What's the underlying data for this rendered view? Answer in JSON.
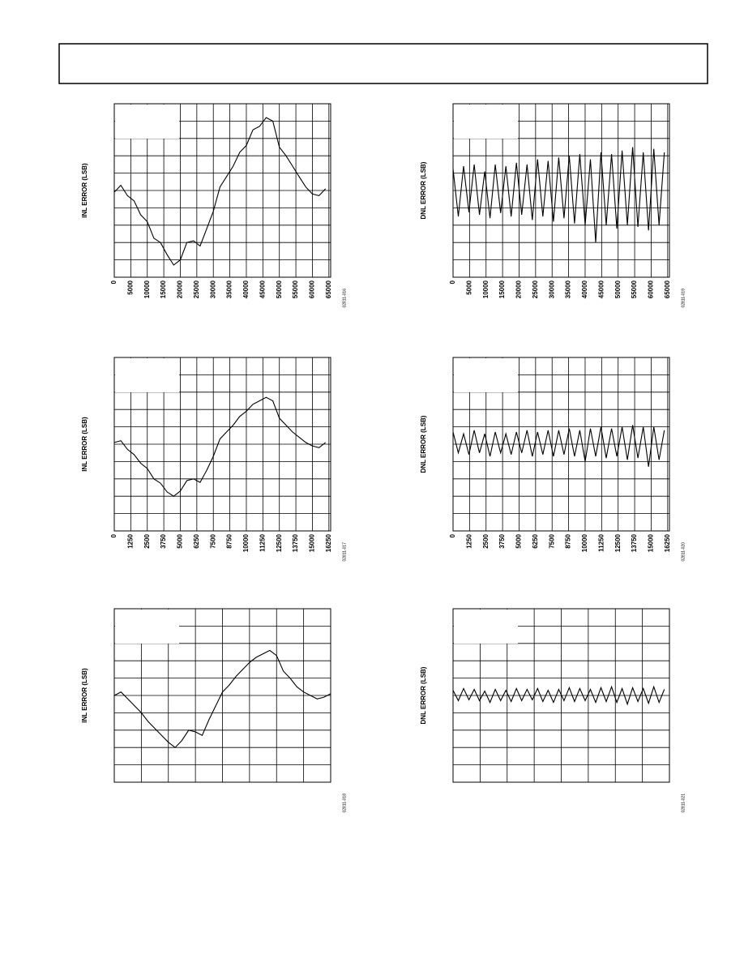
{
  "chart_data": [
    {
      "type": "line",
      "y_label": "INL ERROR (LSB)",
      "figure_id": "02811-016",
      "xlim": [
        0,
        65536
      ],
      "ylim": [
        -1,
        1
      ],
      "xticks": [
        0,
        5000,
        10000,
        15000,
        20000,
        25000,
        30000,
        35000,
        40000,
        45000,
        50000,
        55000,
        60000,
        65000
      ],
      "y_gridlines": [
        -0.8,
        -0.6,
        -0.4,
        -0.2,
        0,
        0.2,
        0.4,
        0.6,
        0.8
      ],
      "color": "#000000",
      "x": [
        0,
        2000,
        4000,
        6000,
        8000,
        10000,
        12000,
        14000,
        16000,
        18000,
        20000,
        22000,
        24000,
        26000,
        28000,
        30000,
        32000,
        34000,
        36000,
        38000,
        40000,
        42000,
        44000,
        46000,
        48000,
        50000,
        52000,
        54000,
        56000,
        58000,
        60000,
        62000,
        64000
      ],
      "values": [
        -0.02,
        0.06,
        -0.06,
        -0.12,
        -0.28,
        -0.36,
        -0.55,
        -0.6,
        -0.74,
        -0.86,
        -0.8,
        -0.6,
        -0.58,
        -0.64,
        -0.44,
        -0.24,
        0.04,
        0.16,
        0.28,
        0.44,
        0.52,
        0.7,
        0.74,
        0.84,
        0.8,
        0.5,
        0.4,
        0.28,
        0.16,
        0.04,
        -0.04,
        -0.06,
        0.02
      ]
    },
    {
      "type": "line",
      "y_label": "DNL ERROR (LSB)",
      "figure_id": "02811-019",
      "xlim": [
        0,
        65536
      ],
      "ylim": [
        -1,
        1
      ],
      "xticks": [
        0,
        5000,
        10000,
        15000,
        20000,
        25000,
        30000,
        35000,
        40000,
        45000,
        50000,
        55000,
        60000,
        65000
      ],
      "y_gridlines": [
        -0.8,
        -0.6,
        -0.4,
        -0.2,
        0,
        0.2,
        0.4,
        0.6,
        0.8
      ],
      "color": "#000000",
      "x": [
        0,
        1600,
        3200,
        4800,
        6400,
        8000,
        9600,
        11200,
        12800,
        14400,
        16000,
        17600,
        19200,
        20800,
        22400,
        24000,
        25600,
        27200,
        28800,
        30400,
        32000,
        33600,
        35200,
        36800,
        38400,
        40000,
        41600,
        43200,
        44800,
        46400,
        48000,
        49600,
        51200,
        52800,
        54400,
        56000,
        57600,
        59200,
        60800,
        62400,
        64000
      ],
      "values": [
        0.25,
        -0.3,
        0.28,
        -0.25,
        0.3,
        -0.28,
        0.22,
        -0.32,
        0.3,
        -0.26,
        0.28,
        -0.3,
        0.32,
        -0.28,
        0.3,
        -0.34,
        0.36,
        -0.3,
        0.34,
        -0.36,
        0.38,
        -0.32,
        0.4,
        -0.38,
        0.42,
        -0.4,
        0.36,
        -0.6,
        0.44,
        -0.4,
        0.42,
        -0.44,
        0.46,
        -0.4,
        0.5,
        -0.42,
        0.44,
        -0.46,
        0.48,
        -0.4,
        0.44
      ]
    },
    {
      "type": "line",
      "y_label": "INL ERROR (LSB)",
      "figure_id": "02811-017",
      "xlim": [
        0,
        16384
      ],
      "ylim": [
        -1,
        1
      ],
      "xticks": [
        0,
        1250,
        2500,
        3750,
        5000,
        6250,
        7500,
        8750,
        10000,
        11250,
        12500,
        13750,
        15000,
        16250
      ],
      "y_gridlines": [
        -0.8,
        -0.6,
        -0.4,
        -0.2,
        0,
        0.2,
        0.4,
        0.6,
        0.8
      ],
      "color": "#000000",
      "x": [
        0,
        500,
        1000,
        1500,
        2000,
        2500,
        3000,
        3500,
        4000,
        4500,
        5000,
        5500,
        6000,
        6500,
        7000,
        7500,
        8000,
        8500,
        9000,
        9500,
        10000,
        10500,
        11000,
        11500,
        12000,
        12500,
        13000,
        13500,
        14000,
        14500,
        15000,
        15500,
        16000
      ],
      "values": [
        0.02,
        0.04,
        -0.06,
        -0.12,
        -0.22,
        -0.28,
        -0.4,
        -0.45,
        -0.55,
        -0.6,
        -0.54,
        -0.42,
        -0.4,
        -0.44,
        -0.3,
        -0.14,
        0.06,
        0.14,
        0.22,
        0.32,
        0.38,
        0.46,
        0.5,
        0.54,
        0.5,
        0.3,
        0.22,
        0.14,
        0.08,
        0.02,
        -0.02,
        -0.04,
        0.02
      ]
    },
    {
      "type": "line",
      "y_label": "DNL ERROR (LSB)",
      "figure_id": "02811-020",
      "xlim": [
        0,
        16384
      ],
      "ylim": [
        -1,
        1
      ],
      "xticks": [
        0,
        1250,
        2500,
        3750,
        5000,
        6250,
        7500,
        8750,
        10000,
        11250,
        12500,
        13750,
        15000,
        16250
      ],
      "y_gridlines": [
        -0.8,
        -0.6,
        -0.4,
        -0.2,
        0,
        0.2,
        0.4,
        0.6,
        0.8
      ],
      "color": "#000000",
      "x": [
        0,
        400,
        800,
        1200,
        1600,
        2000,
        2400,
        2800,
        3200,
        3600,
        4000,
        4400,
        4800,
        5200,
        5600,
        6000,
        6400,
        6800,
        7200,
        7600,
        8000,
        8400,
        8800,
        9200,
        9600,
        10000,
        10400,
        10800,
        11200,
        11600,
        12000,
        12400,
        12800,
        13200,
        13600,
        14000,
        14400,
        14800,
        15200,
        15600,
        16000
      ],
      "values": [
        0.14,
        -0.1,
        0.12,
        -0.12,
        0.16,
        -0.1,
        0.12,
        -0.14,
        0.14,
        -0.1,
        0.12,
        -0.12,
        0.14,
        -0.1,
        0.16,
        -0.14,
        0.14,
        -0.12,
        0.16,
        -0.14,
        0.16,
        -0.12,
        0.18,
        -0.14,
        0.16,
        -0.2,
        0.18,
        -0.14,
        0.2,
        -0.16,
        0.18,
        -0.14,
        0.2,
        -0.18,
        0.22,
        -0.16,
        0.2,
        -0.26,
        0.2,
        -0.18,
        0.16
      ]
    },
    {
      "type": "line",
      "y_label": "INL ERROR (LSB)",
      "figure_id": "02811-018",
      "xlim": [
        0,
        4096
      ],
      "ylim": [
        -1,
        1
      ],
      "x_gridlines": [
        512,
        1024,
        1536,
        2048,
        2560,
        3072,
        3584,
        4096
      ],
      "y_gridlines": [
        -0.8,
        -0.6,
        -0.4,
        -0.2,
        0,
        0.2,
        0.4,
        0.6,
        0.8
      ],
      "color": "#000000",
      "x": [
        0,
        128,
        256,
        384,
        512,
        640,
        768,
        896,
        1024,
        1152,
        1280,
        1408,
        1536,
        1664,
        1792,
        1920,
        2048,
        2176,
        2304,
        2432,
        2560,
        2688,
        2816,
        2944,
        3072,
        3200,
        3328,
        3456,
        3584,
        3712,
        3840,
        3968,
        4096
      ],
      "values": [
        0.0,
        0.04,
        -0.04,
        -0.12,
        -0.2,
        -0.3,
        -0.38,
        -0.46,
        -0.54,
        -0.6,
        -0.52,
        -0.4,
        -0.42,
        -0.46,
        -0.28,
        -0.12,
        0.04,
        0.12,
        0.22,
        0.3,
        0.38,
        0.44,
        0.48,
        0.52,
        0.46,
        0.28,
        0.2,
        0.1,
        0.04,
        0.0,
        -0.04,
        -0.02,
        0.02
      ]
    },
    {
      "type": "line",
      "y_label": "DNL ERROR (LSB)",
      "figure_id": "02811-021",
      "xlim": [
        0,
        4096
      ],
      "ylim": [
        -1,
        1
      ],
      "x_gridlines": [
        512,
        1024,
        1536,
        2048,
        2560,
        3072,
        3584,
        4096
      ],
      "y_gridlines": [
        -0.8,
        -0.6,
        -0.4,
        -0.2,
        0,
        0.2,
        0.4,
        0.6,
        0.8
      ],
      "color": "#000000",
      "x": [
        0,
        100,
        200,
        300,
        400,
        500,
        600,
        700,
        800,
        900,
        1000,
        1100,
        1200,
        1300,
        1400,
        1500,
        1600,
        1700,
        1800,
        1900,
        2000,
        2100,
        2200,
        2300,
        2400,
        2500,
        2600,
        2700,
        2800,
        2900,
        3000,
        3100,
        3200,
        3300,
        3400,
        3500,
        3600,
        3700,
        3800,
        3900,
        4000
      ],
      "values": [
        0.06,
        -0.06,
        0.08,
        -0.05,
        0.07,
        -0.06,
        0.05,
        -0.08,
        0.07,
        -0.06,
        0.06,
        -0.07,
        0.08,
        -0.06,
        0.07,
        -0.05,
        0.08,
        -0.07,
        0.06,
        -0.08,
        0.07,
        -0.06,
        0.09,
        -0.07,
        0.08,
        -0.06,
        0.07,
        -0.08,
        0.09,
        -0.07,
        0.1,
        -0.08,
        0.08,
        -0.1,
        0.09,
        -0.07,
        0.08,
        -0.09,
        0.1,
        -0.08,
        0.07
      ]
    }
  ]
}
